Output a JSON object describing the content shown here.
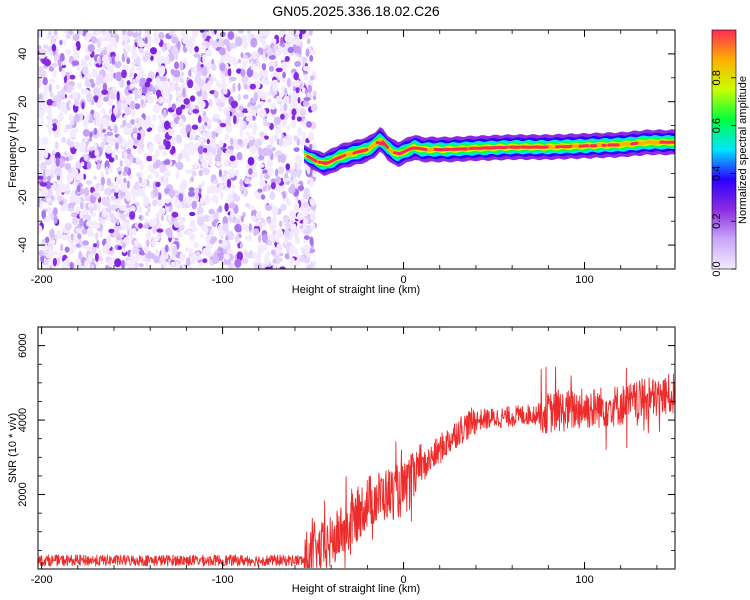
{
  "title": "GN05.2025.336.18.02.C26",
  "chart_data": [
    {
      "type": "heatmap",
      "name": "spectrogram",
      "xlabel": "Height of straight line (km)",
      "ylabel": "Frequency (Hz)",
      "xlim": [
        -202,
        150
      ],
      "ylim": [
        -50,
        50
      ],
      "xticks": [
        -200,
        -100,
        0,
        100
      ],
      "xtick_labels": [
        "-200",
        "-100",
        "0",
        "100"
      ],
      "yticks": [
        -40,
        -20,
        0,
        20,
        40
      ],
      "ytick_labels": [
        "-40",
        "-20",
        "0",
        "20",
        "40"
      ],
      "noise_region_x": [
        -202,
        -49
      ],
      "signal_track": {
        "x": [
          -55,
          -48,
          -44,
          -40,
          -35,
          -30,
          -25,
          -20,
          -16,
          -13,
          -11,
          -9,
          -6,
          -3,
          0,
          3,
          6,
          10,
          15,
          25,
          40,
          60,
          80,
          100,
          120,
          135,
          150
        ],
        "y": [
          -2,
          -5,
          -6,
          -5,
          -3,
          -2,
          -1,
          0,
          2,
          4,
          3,
          1,
          -1,
          -2,
          -1,
          0,
          1,
          0,
          0,
          0,
          0.5,
          1,
          1,
          1.5,
          2,
          3,
          3
        ]
      },
      "colorbar": {
        "label": "Normalized spectral amplitude",
        "range": [
          0,
          1
        ],
        "ticks": [
          0.0,
          0.2,
          0.4,
          0.6,
          0.8
        ],
        "tick_labels": [
          "0.0",
          "0.2",
          "0.4",
          "0.6",
          "0.8"
        ],
        "colors": [
          "#f4ecff",
          "#c9a6f7",
          "#8a2be2",
          "#2b00ff",
          "#00e5ff",
          "#00ff40",
          "#c8ff00",
          "#ffb000",
          "#ff2a55"
        ]
      }
    },
    {
      "type": "line",
      "name": "snr",
      "xlabel": "Height of straight line (km)",
      "ylabel": "SNR (10 * v/v)",
      "xlim": [
        -202,
        150
      ],
      "ylim": [
        0,
        6500
      ],
      "xticks": [
        -200,
        -100,
        0,
        100
      ],
      "xtick_labels": [
        "-200",
        "-100",
        "0",
        "100"
      ],
      "yticks": [
        2000,
        4000,
        6000
      ],
      "ytick_labels": [
        "2000",
        "4000",
        "6000"
      ],
      "color": "#ee2b2b",
      "envelope": {
        "x": [
          -202,
          -55,
          -40,
          -30,
          -20,
          -10,
          0,
          10,
          20,
          30,
          40,
          60,
          80,
          100,
          120,
          140,
          150
        ],
        "y": [
          200,
          250,
          700,
          1200,
          1800,
          2000,
          2100,
          2700,
          3200,
          3700,
          4000,
          4100,
          4200,
          4300,
          4400,
          4600,
          4700
        ]
      }
    }
  ]
}
